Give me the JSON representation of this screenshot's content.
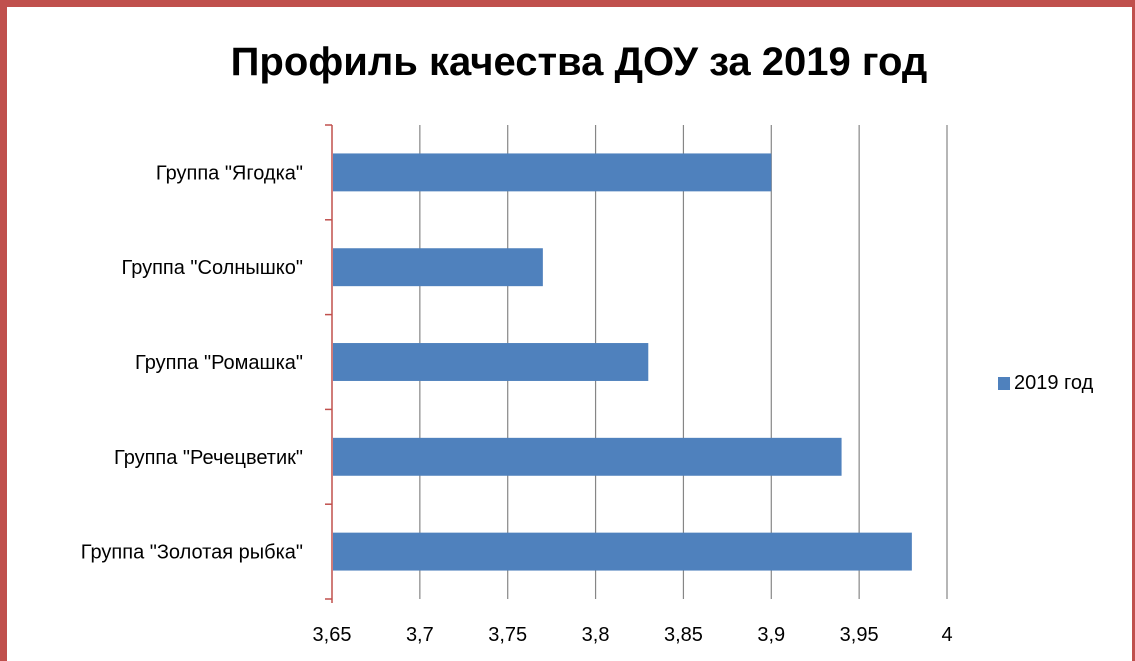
{
  "chart_data": {
    "type": "bar",
    "orientation": "horizontal",
    "title": "Профиль качества ДОУ за 2019 год",
    "categories": [
      "Группа \"Ягодка\"",
      "Группа \"Солнышко\"",
      "Группа \"Ромашка\"",
      "Группа \"Речецветик\"",
      "Группа \"Золотая рыбка\""
    ],
    "series": [
      {
        "name": "2019 год",
        "values": [
          3.9,
          3.77,
          3.83,
          3.94,
          3.98
        ],
        "color": "#4f81bd"
      }
    ],
    "xlim": [
      3.65,
      4
    ],
    "xticks": [
      "3,65",
      "3,7",
      "3,75",
      "3,8",
      "3,85",
      "3,9",
      "3,95",
      "4"
    ],
    "grid": "vertical",
    "legend_position": "right",
    "xlabel": "",
    "ylabel": ""
  },
  "colors": {
    "border": "#c0504d",
    "bar": "#4f81bd",
    "gridline": "#868686",
    "axis": "#c0504d"
  }
}
